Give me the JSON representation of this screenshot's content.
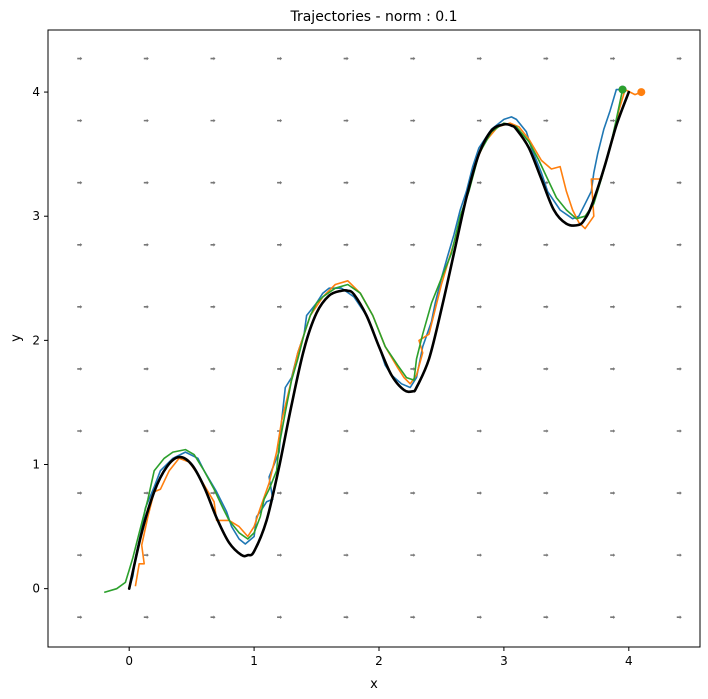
{
  "chart_data": {
    "type": "line",
    "title": "Trajectories - norm : 0.1",
    "xlabel": "x",
    "ylabel": "y",
    "xlim": [
      -0.65,
      4.57
    ],
    "ylim": [
      -0.47,
      4.5
    ],
    "xticks": [
      0,
      1,
      2,
      3,
      4
    ],
    "yticks": [
      0,
      1,
      2,
      3,
      4
    ],
    "grid": false,
    "quiver": {
      "x": [
        -0.4,
        0.133,
        0.667,
        1.2,
        1.733,
        2.267,
        2.8,
        3.333,
        3.867,
        4.4
      ],
      "y": [
        -0.23,
        0.27,
        0.77,
        1.27,
        1.77,
        2.27,
        2.77,
        3.27,
        3.77,
        4.27
      ],
      "color": "#777777",
      "description": "small grey arrows pointing right"
    },
    "reference_curve": {
      "color": "#000000",
      "x": [
        0.0,
        0.1,
        0.2,
        0.3,
        0.4,
        0.5,
        0.6,
        0.7,
        0.8,
        0.9,
        0.95,
        1.0,
        1.1,
        1.2,
        1.3,
        1.4,
        1.5,
        1.6,
        1.7,
        1.75,
        1.8,
        1.9,
        2.0,
        2.1,
        2.2,
        2.27,
        2.3,
        2.4,
        2.5,
        2.6,
        2.7,
        2.8,
        2.9,
        3.0,
        3.06,
        3.1,
        3.2,
        3.3,
        3.4,
        3.5,
        3.6,
        3.65,
        3.7,
        3.8,
        3.9,
        4.0
      ],
      "y": [
        0.0,
        0.45,
        0.78,
        0.98,
        1.06,
        1.0,
        0.82,
        0.57,
        0.37,
        0.27,
        0.27,
        0.3,
        0.55,
        0.98,
        1.48,
        1.93,
        2.22,
        2.36,
        2.4,
        2.4,
        2.37,
        2.2,
        1.95,
        1.72,
        1.6,
        1.59,
        1.62,
        1.85,
        2.25,
        2.7,
        3.15,
        3.5,
        3.69,
        3.74,
        3.73,
        3.7,
        3.55,
        3.3,
        3.05,
        2.94,
        2.93,
        2.98,
        3.08,
        3.38,
        3.73,
        4.0
      ]
    },
    "series": [
      {
        "color": "#1f77b4",
        "x": [
          0.0,
          0.03,
          0.05,
          0.1,
          0.13,
          0.2,
          0.25,
          0.35,
          0.45,
          0.55,
          0.6,
          0.7,
          0.78,
          0.82,
          0.88,
          0.93,
          1.0,
          1.02,
          1.05,
          1.1,
          1.15,
          1.12,
          1.2,
          1.22,
          1.25,
          1.3,
          1.35,
          1.4,
          1.42,
          1.5,
          1.55,
          1.6,
          1.7,
          1.8,
          1.9,
          2.0,
          2.05,
          2.1,
          2.18,
          2.25,
          2.3,
          2.35,
          2.42,
          2.45,
          2.5,
          2.55,
          2.6,
          2.65,
          2.7,
          2.75,
          2.8,
          2.9,
          3.0,
          3.06,
          3.1,
          3.18,
          3.22,
          3.3,
          3.35,
          3.45,
          3.55,
          3.6,
          3.65,
          3.7,
          3.72,
          3.75,
          3.8,
          3.85,
          3.9,
          3.95
        ],
        "y": [
          0.0,
          0.1,
          0.25,
          0.48,
          0.65,
          0.82,
          0.95,
          1.05,
          1.1,
          1.05,
          0.95,
          0.78,
          0.62,
          0.5,
          0.4,
          0.36,
          0.42,
          0.58,
          0.62,
          0.7,
          0.72,
          0.9,
          1.1,
          1.35,
          1.62,
          1.7,
          1.9,
          2.05,
          2.2,
          2.3,
          2.38,
          2.42,
          2.42,
          2.35,
          2.2,
          1.95,
          1.8,
          1.72,
          1.65,
          1.62,
          1.7,
          1.95,
          2.15,
          2.3,
          2.5,
          2.68,
          2.85,
          3.05,
          3.2,
          3.4,
          3.55,
          3.7,
          3.78,
          3.8,
          3.78,
          3.68,
          3.55,
          3.35,
          3.2,
          3.05,
          2.98,
          3.0,
          3.1,
          3.2,
          3.35,
          3.5,
          3.7,
          3.85,
          4.02,
          4.02
        ]
      },
      {
        "color": "#ff7f0e",
        "x": [
          0.05,
          0.08,
          0.12,
          0.1,
          0.15,
          0.2,
          0.25,
          0.32,
          0.4,
          0.48,
          0.55,
          0.62,
          0.68,
          0.7,
          0.8,
          0.88,
          0.95,
          1.0,
          1.05,
          1.12,
          1.18,
          1.22,
          1.28,
          1.35,
          1.4,
          1.45,
          1.55,
          1.65,
          1.75,
          1.85,
          1.95,
          2.05,
          2.15,
          2.2,
          2.25,
          2.3,
          2.35,
          2.32,
          2.4,
          2.45,
          2.5,
          2.55,
          2.62,
          2.7,
          2.78,
          2.85,
          2.95,
          3.05,
          3.12,
          3.2,
          3.3,
          3.38,
          3.45,
          3.5,
          3.55,
          3.6,
          3.65,
          3.72,
          3.7,
          3.78,
          3.82,
          3.88,
          3.92,
          3.97,
          4.05,
          4.1
        ],
        "y": [
          0.02,
          0.2,
          0.2,
          0.35,
          0.58,
          0.78,
          0.8,
          0.95,
          1.05,
          1.02,
          0.92,
          0.8,
          0.7,
          0.55,
          0.55,
          0.5,
          0.42,
          0.5,
          0.65,
          0.85,
          1.1,
          1.35,
          1.6,
          1.9,
          2.05,
          2.2,
          2.35,
          2.45,
          2.48,
          2.38,
          2.2,
          1.95,
          1.78,
          1.7,
          1.65,
          1.72,
          1.9,
          2.0,
          2.05,
          2.25,
          2.45,
          2.62,
          2.85,
          3.15,
          3.45,
          3.6,
          3.72,
          3.75,
          3.72,
          3.62,
          3.45,
          3.38,
          3.4,
          3.2,
          3.05,
          2.95,
          2.9,
          3.0,
          3.3,
          3.3,
          3.45,
          3.65,
          3.85,
          4.02,
          3.98,
          4.0
        ]
      },
      {
        "color": "#2ca02c",
        "x": [
          -0.2,
          -0.1,
          -0.03,
          0.0,
          0.03,
          0.08,
          0.15,
          0.2,
          0.28,
          0.35,
          0.45,
          0.52,
          0.6,
          0.68,
          0.75,
          0.8,
          0.88,
          0.95,
          1.0,
          1.05,
          1.08,
          1.12,
          1.18,
          1.2,
          1.25,
          1.3,
          1.35,
          1.4,
          1.45,
          1.5,
          1.55,
          1.65,
          1.75,
          1.85,
          1.95,
          2.05,
          2.15,
          2.22,
          2.28,
          2.3,
          2.35,
          2.42,
          2.5,
          2.58,
          2.65,
          2.72,
          2.8,
          2.9,
          3.0,
          3.1,
          3.2,
          3.28,
          3.35,
          3.42,
          3.5,
          3.58,
          3.65,
          3.72,
          3.78,
          3.85,
          3.9,
          3.95
        ],
        "y": [
          -0.03,
          0.0,
          0.05,
          0.15,
          0.25,
          0.45,
          0.72,
          0.95,
          1.05,
          1.1,
          1.12,
          1.08,
          0.95,
          0.8,
          0.65,
          0.55,
          0.45,
          0.4,
          0.45,
          0.58,
          0.72,
          0.8,
          0.95,
          1.15,
          1.42,
          1.68,
          1.85,
          2.05,
          2.2,
          2.3,
          2.35,
          2.42,
          2.45,
          2.38,
          2.2,
          1.95,
          1.8,
          1.7,
          1.68,
          1.85,
          2.05,
          2.3,
          2.5,
          2.7,
          3.0,
          3.2,
          3.5,
          3.68,
          3.75,
          3.72,
          3.6,
          3.45,
          3.3,
          3.15,
          3.05,
          2.98,
          3.0,
          3.1,
          3.3,
          3.55,
          3.78,
          4.02
        ]
      }
    ]
  }
}
